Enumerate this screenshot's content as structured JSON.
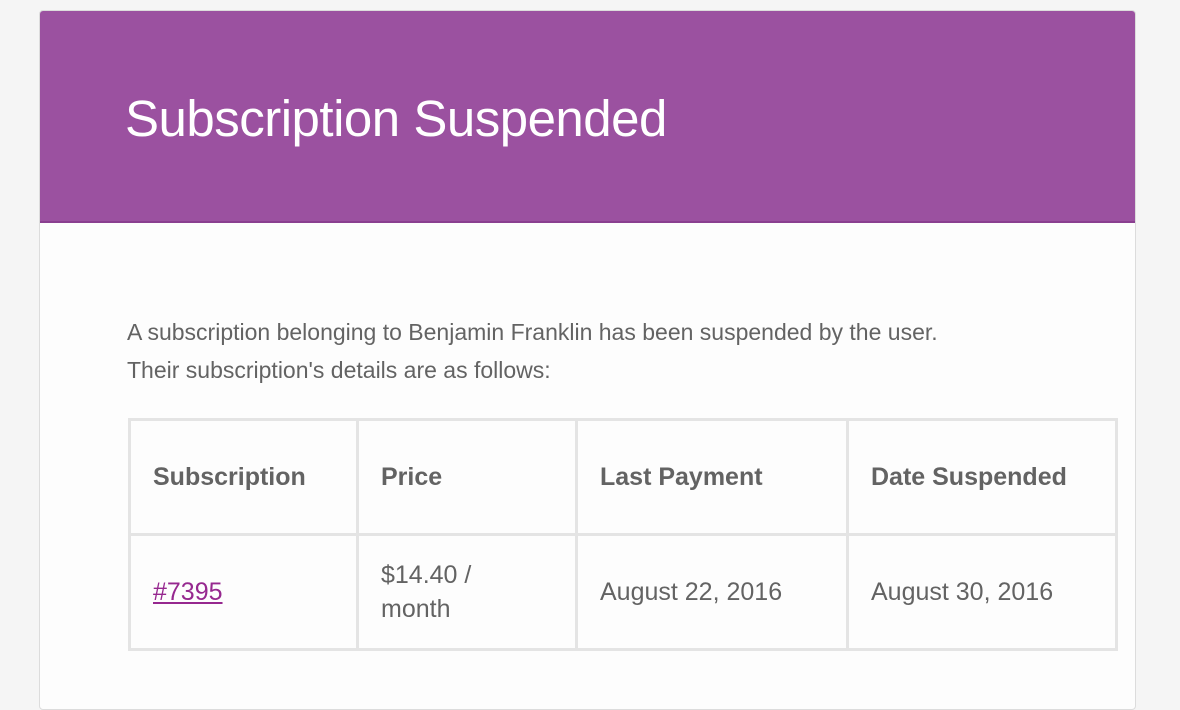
{
  "email": {
    "title": "Subscription Suspended",
    "intro_line1": "A subscription belonging to Benjamin Franklin has been suspended by the user.",
    "intro_line2": "Their subscription's details are as follows:",
    "colors": {
      "header": "#9b51a0",
      "link": "#96288f",
      "text": "#636363"
    },
    "table": {
      "headers": [
        "Subscription",
        "Price",
        "Last Payment",
        "Date Suspended"
      ],
      "rows": [
        {
          "subscription": "#7395",
          "price": "$14.40 / month",
          "last_payment": "August 22, 2016",
          "date_suspended": "August 30, 2016"
        }
      ]
    }
  }
}
